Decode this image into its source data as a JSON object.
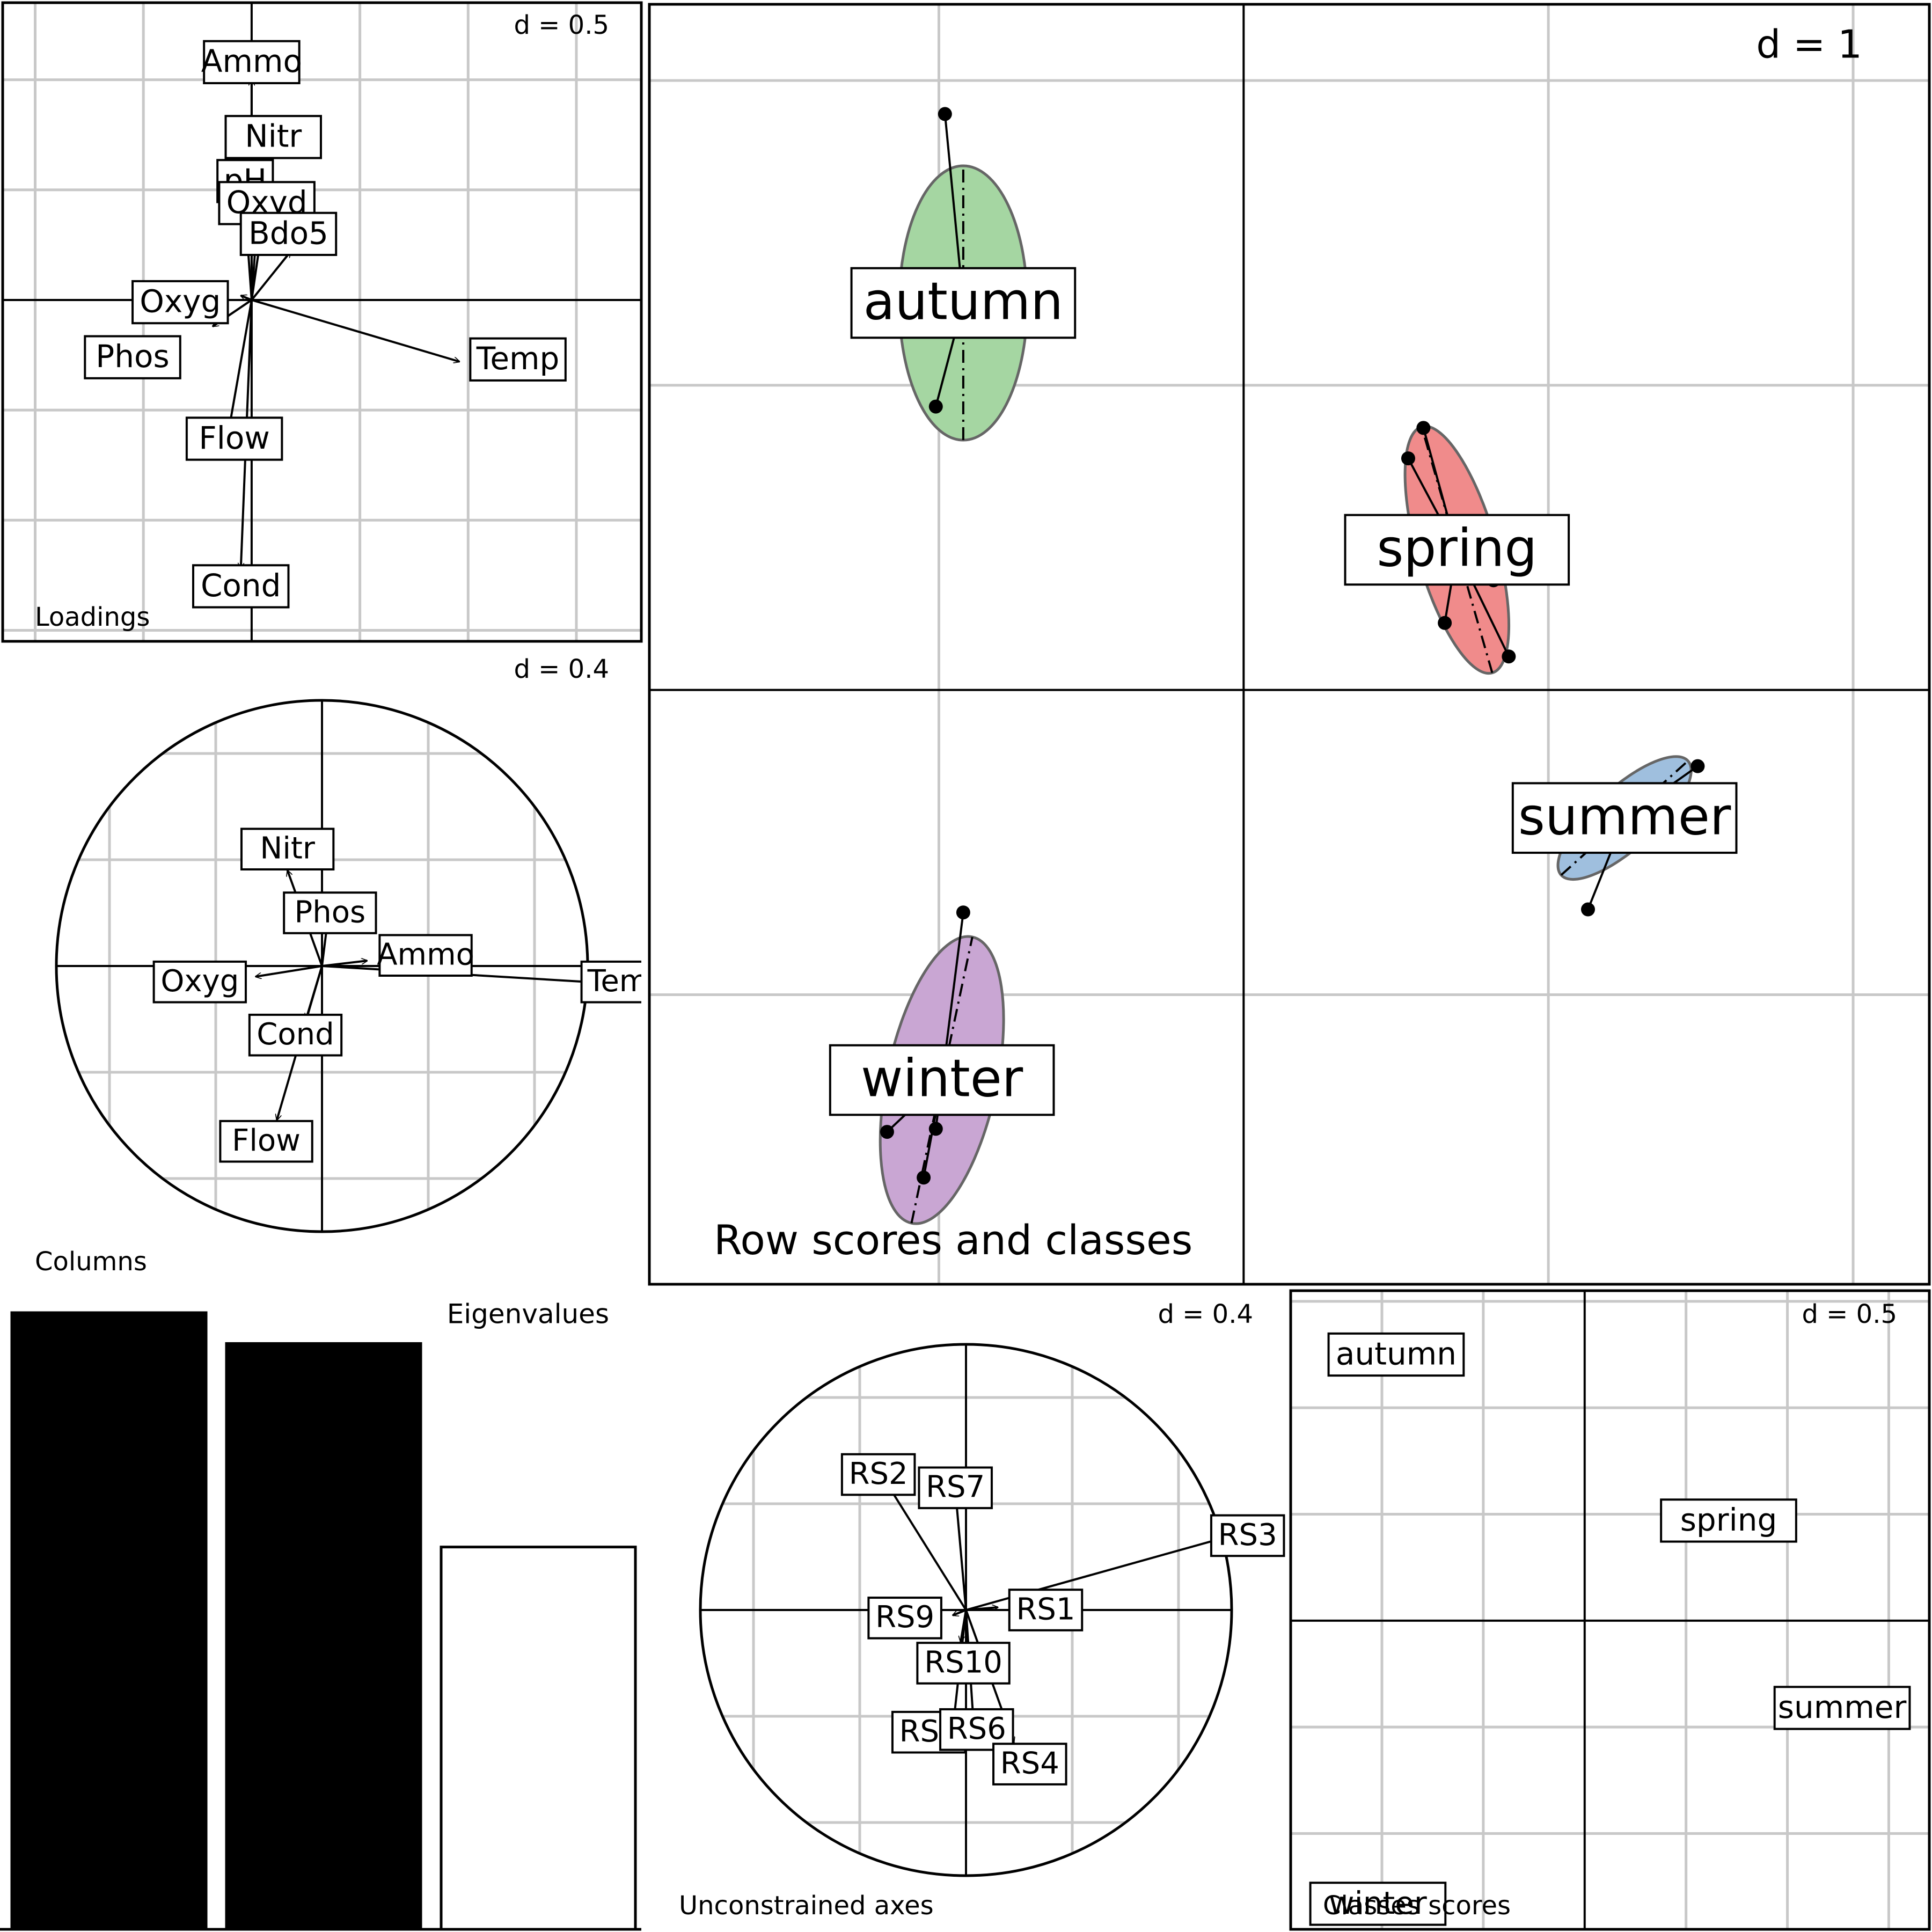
{
  "chart_data": [
    {
      "id": "loadings",
      "type": "biplot-arrows",
      "title": "Loadings",
      "d_label": "d = 0.5",
      "grid_step": 0.5,
      "xlim": [
        -1.15,
        1.8
      ],
      "ylim": [
        -1.55,
        1.35
      ],
      "arrows": [
        {
          "name": "Ammo",
          "x": 0.0,
          "y": 1.0,
          "lx": 0.0,
          "ly": 1.08
        },
        {
          "name": "Nitr",
          "x": 0.1,
          "y": 0.68,
          "lx": 0.1,
          "ly": 0.74
        },
        {
          "name": "pH",
          "x": -0.04,
          "y": 0.55,
          "lx": -0.03,
          "ly": 0.54
        },
        {
          "name": "Oxyd",
          "x": 0.03,
          "y": 0.43,
          "lx": 0.07,
          "ly": 0.44
        },
        {
          "name": "Bdo5",
          "x": 0.18,
          "y": 0.22,
          "lx": 0.17,
          "ly": 0.3
        },
        {
          "name": "Oxyg",
          "x": -0.05,
          "y": 0.02,
          "lx": -0.33,
          "ly": -0.01
        },
        {
          "name": "Phos",
          "x": -0.18,
          "y": -0.12,
          "lx": -0.55,
          "ly": -0.26
        },
        {
          "name": "Temp",
          "x": 0.96,
          "y": -0.28,
          "lx": 1.23,
          "ly": -0.27
        },
        {
          "name": "Flow",
          "x": -0.1,
          "y": -0.56,
          "lx": -0.08,
          "ly": -0.63
        },
        {
          "name": "Cond",
          "x": -0.05,
          "y": -1.22,
          "lx": -0.05,
          "ly": -1.3
        }
      ]
    },
    {
      "id": "columns",
      "type": "correlation-circle",
      "title": "Columns",
      "d_label": "d = 0.4",
      "grid_step": 0.4,
      "xlim": [
        -1.2,
        1.2
      ],
      "ylim": [
        -1.2,
        1.2
      ],
      "arrows": [
        {
          "name": "Temp",
          "x": 1.0,
          "y": -0.06,
          "lx": 1.15,
          "ly": -0.06
        },
        {
          "name": "Nitr",
          "x": -0.13,
          "y": 0.36,
          "lx": -0.13,
          "ly": 0.44
        },
        {
          "name": "Phos",
          "x": 0.02,
          "y": 0.16,
          "lx": 0.03,
          "ly": 0.2
        },
        {
          "name": "Ammo",
          "x": 0.17,
          "y": 0.02,
          "lx": 0.39,
          "ly": 0.04
        },
        {
          "name": "Oxyg",
          "x": -0.25,
          "y": -0.04,
          "lx": -0.46,
          "ly": -0.06
        },
        {
          "name": "Cond",
          "x": -0.06,
          "y": -0.2,
          "lx": -0.1,
          "ly": -0.26
        },
        {
          "name": "Flow",
          "x": -0.17,
          "y": -0.58,
          "lx": -0.21,
          "ly": -0.66
        }
      ]
    },
    {
      "id": "row-scores",
      "type": "scatter-classes",
      "title": "Row scores and classes",
      "d_label": "d = 1",
      "grid_step": 1,
      "xlim": [
        -1.95,
        2.25
      ],
      "ylim": [
        -1.95,
        2.25
      ],
      "classes": [
        {
          "name": "autumn",
          "color": "#a5d6a2",
          "cx": -0.92,
          "cy": 1.27,
          "ellipse": {
            "rx": 0.21,
            "ry": 0.45,
            "angle": 0
          },
          "points": [
            [
              -0.98,
              1.89
            ],
            [
              -1.12,
              1.2
            ],
            [
              -0.9,
              1.19
            ],
            [
              -0.77,
              1.19
            ],
            [
              -1.01,
              0.93
            ]
          ]
        },
        {
          "name": "spring",
          "color": "#f08b8b",
          "cx": 0.7,
          "cy": 0.46,
          "ellipse": {
            "rx": 0.13,
            "ry": 0.42,
            "angle": -16
          },
          "points": [
            [
              0.59,
              0.86
            ],
            [
              0.54,
              0.76
            ],
            [
              0.82,
              0.36
            ],
            [
              0.66,
              0.22
            ],
            [
              0.87,
              0.11
            ]
          ]
        },
        {
          "name": "summer",
          "color": "#9fbfde",
          "cx": 1.25,
          "cy": -0.42,
          "ellipse": {
            "rx": 0.28,
            "ry": 0.1,
            "angle": -42
          },
          "points": [
            [
              1.49,
              -0.25
            ],
            [
              1.13,
              -0.72
            ]
          ]
        },
        {
          "name": "winter",
          "color": "#c9a6d3",
          "cx": -0.99,
          "cy": -1.28,
          "ellipse": {
            "rx": 0.18,
            "ry": 0.48,
            "angle": 12
          },
          "points": [
            [
              -0.92,
              -0.73
            ],
            [
              -1.17,
              -1.45
            ],
            [
              -1.01,
              -1.44
            ],
            [
              -1.05,
              -1.6
            ]
          ]
        }
      ]
    },
    {
      "id": "eigenvalues",
      "type": "bar",
      "title": "Eigenvalues",
      "values": [
        1.0,
        0.95,
        0.62
      ],
      "highlight": [
        true,
        true,
        false
      ]
    },
    {
      "id": "unconstrained",
      "type": "correlation-circle",
      "title": "Unconstrained axes",
      "d_label": "d = 0.4",
      "grid_step": 0.4,
      "xlim": [
        -1.2,
        1.2
      ],
      "ylim": [
        -1.2,
        1.2
      ],
      "arrows": [
        {
          "name": "RS3",
          "x": 1.0,
          "y": 0.28,
          "lx": 1.06,
          "ly": 0.28
        },
        {
          "name": "RS2",
          "x": -0.3,
          "y": 0.48,
          "lx": -0.33,
          "ly": 0.51
        },
        {
          "name": "RS7",
          "x": -0.04,
          "y": 0.45,
          "lx": -0.04,
          "ly": 0.46
        },
        {
          "name": "RS9",
          "x": -0.05,
          "y": -0.02,
          "lx": -0.23,
          "ly": -0.03
        },
        {
          "name": "RS1",
          "x": 0.12,
          "y": 0.01,
          "lx": 0.3,
          "ly": 0.0
        },
        {
          "name": "RS10",
          "x": -0.02,
          "y": -0.12,
          "lx": -0.01,
          "ly": -0.2
        },
        {
          "name": "RS5",
          "x": -0.05,
          "y": -0.45,
          "lx": -0.14,
          "ly": -0.46
        },
        {
          "name": "RS6",
          "x": 0.03,
          "y": -0.45,
          "lx": 0.04,
          "ly": -0.45
        },
        {
          "name": "RS4",
          "x": 0.18,
          "y": -0.5,
          "lx": 0.24,
          "ly": -0.58
        }
      ]
    },
    {
      "id": "classes-scores",
      "type": "labels",
      "title": "Classes scores",
      "d_label": "d = 0.5",
      "grid_step": 0.5,
      "xlim": [
        -1.45,
        1.7
      ],
      "ylim": [
        -1.45,
        1.55
      ],
      "labels": [
        {
          "name": "autumn",
          "x": -0.93,
          "y": 1.25
        },
        {
          "name": "spring",
          "x": 0.71,
          "y": 0.47
        },
        {
          "name": "summer",
          "x": 1.27,
          "y": -0.41
        },
        {
          "name": "winter",
          "x": -1.02,
          "y": -1.33
        }
      ]
    }
  ]
}
